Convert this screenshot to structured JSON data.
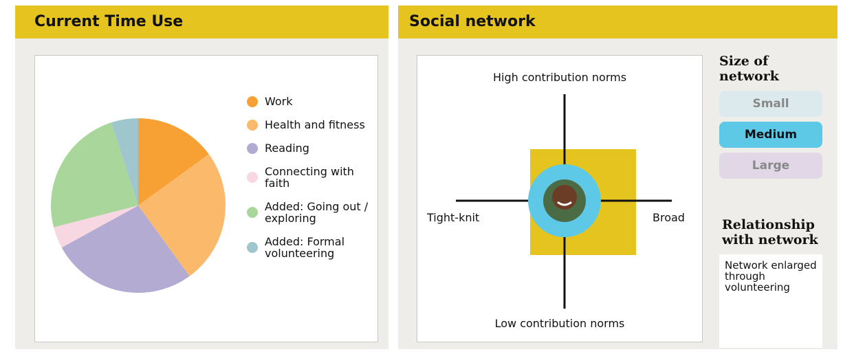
{
  "time_use": {
    "title": "Current Time Use",
    "chart_data": {
      "type": "pie",
      "categories": [
        "Work",
        "Health and fitness",
        "Reading",
        "Connecting with faith",
        "Added: Going out / exploring",
        "Added: Formal volunteering"
      ],
      "values": [
        15,
        25,
        27,
        4,
        24,
        5
      ],
      "colors": [
        "#f7a033",
        "#fbb96c",
        "#b4abd3",
        "#f7d7e1",
        "#a9d69b",
        "#9fc6cc"
      ]
    }
  },
  "social_network": {
    "title": "Social network",
    "axes": {
      "top": "High contribution norms",
      "bottom": "Low contribution norms",
      "left": "Tight-knit",
      "right": "Broad"
    },
    "size": {
      "title": "Size of network",
      "options": [
        "Small",
        "Medium",
        "Large"
      ],
      "selected": 1
    },
    "relationship": {
      "title": "Relationship with network",
      "text": "Network enlarged through volunteering"
    }
  }
}
